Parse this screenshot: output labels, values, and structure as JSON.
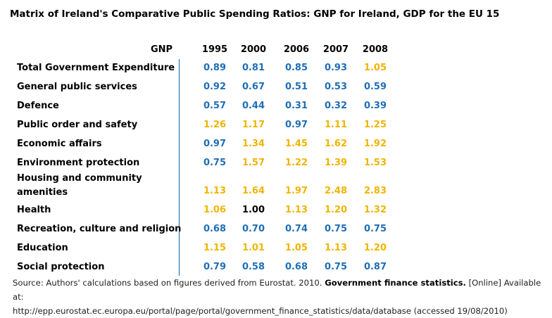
{
  "title": "Matrix of Ireland's Comparative Public Spending Ratios: GNP for Ireland, GDP for the EU 15",
  "colors": {
    "above_one": "#f0b400",
    "below_one": "#1f6eb5",
    "equal_one": "#000000",
    "divider": "#1f5fa6"
  },
  "chart_data": {
    "type": "table",
    "header_label": "GNP",
    "columns": [
      "1995",
      "2000",
      "2006",
      "2007",
      "2008"
    ],
    "rows": [
      {
        "label": "Total Government Expenditure",
        "values": [
          "0.89",
          "0.81",
          "0.85",
          "0.93",
          "1.05"
        ]
      },
      {
        "label": "General public services",
        "values": [
          "0.92",
          "0.67",
          "0.51",
          "0.53",
          "0.59"
        ]
      },
      {
        "label": "Defence",
        "values": [
          "0.57",
          "0.44",
          "0.31",
          "0.32",
          "0.39"
        ]
      },
      {
        "label": "Public order and safety",
        "values": [
          "1.26",
          "1.17",
          "0.97",
          "1.11",
          "1.25"
        ]
      },
      {
        "label": "Economic affairs",
        "values": [
          "0.97",
          "1.34",
          "1.45",
          "1.62",
          "1.92"
        ]
      },
      {
        "label": "Environment protection",
        "values": [
          "0.75",
          "1.57",
          "1.22",
          "1.39",
          "1.53"
        ]
      },
      {
        "label": "Housing and community amenities",
        "label_line1": "Housing and community",
        "label_line2": "amenities",
        "values": [
          "1.13",
          "1.64",
          "1.97",
          "2.48",
          "2.83"
        ]
      },
      {
        "label": "Health",
        "values": [
          "1.06",
          "1.00",
          "1.13",
          "1.20",
          "1.32"
        ]
      },
      {
        "label": "Recreation, culture and religion",
        "values": [
          "0.68",
          "0.70",
          "0.74",
          "0.75",
          "0.75"
        ]
      },
      {
        "label": "Education",
        "values": [
          "1.15",
          "1.01",
          "1.05",
          "1.13",
          "1.20"
        ]
      },
      {
        "label": "Social protection",
        "values": [
          "0.79",
          "0.58",
          "0.68",
          "0.75",
          "0.87"
        ]
      }
    ]
  },
  "source": {
    "prefix": "Source: Authors' calculations based on figures derived from Eurostat. 2010.",
    "bold": "Government finance statistics.",
    "suffix": "[Online] Available at:",
    "line2": "http://epp.eurostat.ec.europa.eu/portal/page/portal/government_finance_statistics/data/database (accessed 19/08/2010)"
  }
}
